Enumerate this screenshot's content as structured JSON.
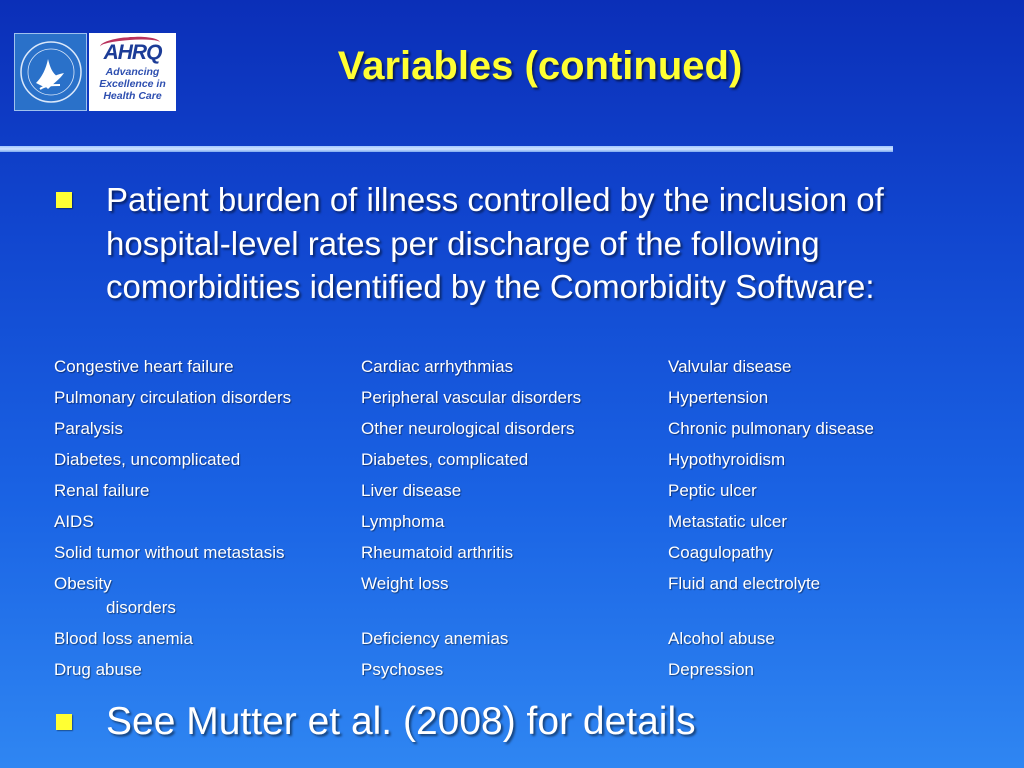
{
  "title": "Variables (continued)",
  "logos": {
    "hhs_name": "hhs-eagle-seal",
    "ahrq_mark": "AHRQ",
    "ahrq_tagline": "Advancing Excellence in Health Care"
  },
  "bullets": [
    "Patient burden of illness controlled by the inclusion of hospital-level rates per discharge of the following comorbidities identified by the Comorbidity Software:",
    "See Mutter et al. (2008) for details"
  ],
  "comorbidities": [
    [
      "Congestive heart failure",
      "Cardiac arrhythmias",
      "Valvular disease"
    ],
    [
      "Pulmonary circulation disorders",
      "Peripheral vascular disorders",
      "Hypertension"
    ],
    [
      "Paralysis",
      "Other neurological disorders",
      "Chronic pulmonary disease"
    ],
    [
      "Diabetes, uncomplicated",
      "Diabetes, complicated",
      "Hypothyroidism"
    ],
    [
      "Renal failure",
      "Liver disease",
      "Peptic ulcer"
    ],
    [
      "AIDS",
      "Lymphoma",
      "Metastatic ulcer"
    ],
    [
      "Solid tumor without metastasis",
      "Rheumatoid arthritis",
      "Coagulopathy"
    ],
    [
      "Obesity",
      "Weight loss",
      "Fluid and electrolyte"
    ],
    [
      "Blood loss anemia",
      "Deficiency anemias",
      "Alcohol abuse"
    ],
    [
      "Drug abuse",
      "Psychoses",
      "Depression"
    ]
  ],
  "comorbidities_continuation": "disorders",
  "colors": {
    "title": "#ffff33",
    "bullet_marker": "#ffff33",
    "background_top": "#0b2fb8",
    "background_bottom": "#2f86f2"
  }
}
